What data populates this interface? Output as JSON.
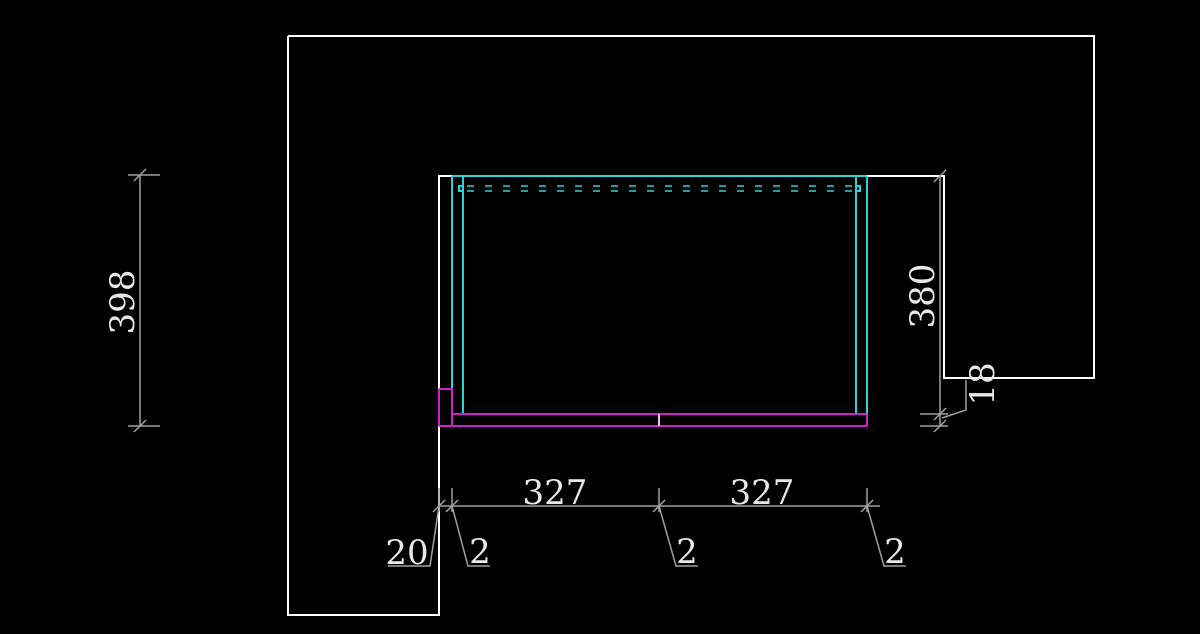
{
  "colors": {
    "background": "#000000",
    "outline": "#ffffff",
    "cabinet": "#2ad4d4",
    "base": "#d020d0",
    "dimension": "#a0a0a0"
  },
  "dimensions": {
    "overall_height": "398",
    "inner_height": "380",
    "bottom_offset": "18",
    "door_width_left": "327",
    "door_width_right": "327",
    "gap_left": "2",
    "gap_middle": "2",
    "gap_right": "2",
    "side_offset": "20"
  }
}
